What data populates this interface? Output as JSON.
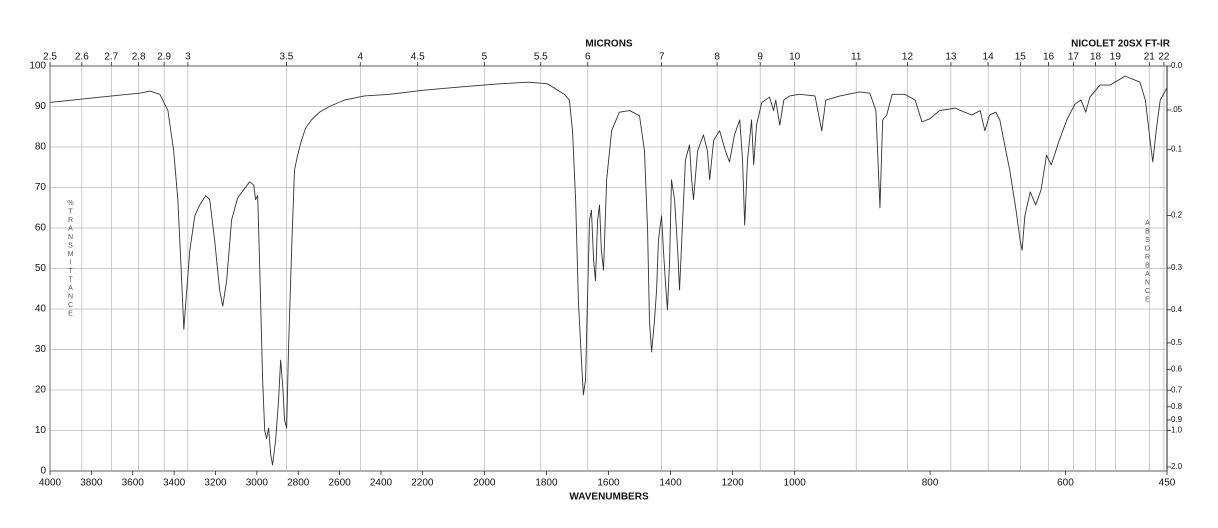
{
  "chart_data": {
    "type": "line",
    "title": "NICOLET 20SX FT-IR",
    "top_axis_label": "MICRONS",
    "x_label": "WAVENUMBERS",
    "y_label": "%TRANSMITTANCE",
    "y2_label": "ABSORBANCE",
    "xlim": [
      4000,
      450
    ],
    "xbreaks": [
      4000,
      2200,
      1000,
      450
    ],
    "xticks": [
      4000,
      3800,
      3600,
      3400,
      3200,
      3000,
      2800,
      2600,
      2400,
      2200,
      2000,
      1800,
      1600,
      1400,
      1200,
      1000,
      800,
      600,
      450
    ],
    "micron_ticks": [
      2.5,
      2.6,
      2.7,
      2.8,
      2.9,
      3,
      3.5,
      4,
      4.5,
      5,
      5.5,
      6,
      7,
      8,
      9,
      10,
      11,
      12,
      13,
      14,
      15,
      16,
      17,
      18,
      19,
      21,
      22
    ],
    "ylim": [
      0,
      100
    ],
    "yticks": [
      0,
      10,
      20,
      30,
      40,
      50,
      60,
      70,
      80,
      90,
      100
    ],
    "y2_scale": "absorbance",
    "y2ticks": [
      {
        "value": 0,
        "label": "0.0"
      },
      {
        "value": 0.05,
        "label": ".05"
      },
      0.1,
      0.2,
      0.3,
      0.4,
      0.5,
      0.6,
      0.7,
      0.8,
      0.9,
      {
        "value": 1,
        "label": "1.0"
      },
      {
        "value": 2,
        "label": "2.0"
      }
    ],
    "grid": true,
    "series": [
      {
        "name": "spectrum",
        "color": "#333333",
        "x": [
          4000,
          3759,
          3566,
          3517,
          3469,
          3430,
          3402,
          3382,
          3368,
          3353,
          3343,
          3324,
          3300,
          3276,
          3247,
          3228,
          3204,
          3180,
          3165,
          3146,
          3122,
          3093,
          3064,
          3035,
          3015,
          3006,
          2996,
          2987,
          2972,
          2962,
          2953,
          2943,
          2933,
          2924,
          2909,
          2895,
          2885,
          2875,
          2866,
          2856,
          2847,
          2832,
          2818,
          2803,
          2784,
          2764,
          2736,
          2697,
          2649,
          2576,
          2480,
          2359,
          2263,
          2200,
          2081,
          1952,
          1855,
          1797,
          1742,
          1726,
          1716,
          1706,
          1697,
          1687,
          1681,
          1674,
          1668,
          1661,
          1655,
          1648,
          1642,
          1635,
          1629,
          1623,
          1616,
          1606,
          1590,
          1565,
          1532,
          1500,
          1484,
          1474,
          1468,
          1461,
          1452,
          1445,
          1439,
          1435,
          1429,
          1423,
          1416,
          1410,
          1403,
          1397,
          1387,
          1377,
          1371,
          1361,
          1352,
          1339,
          1332,
          1326,
          1313,
          1294,
          1281,
          1274,
          1261,
          1242,
          1223,
          1210,
          1194,
          1177,
          1168,
          1161,
          1152,
          1139,
          1132,
          1123,
          1106,
          1081,
          1068,
          1061,
          1048,
          1035,
          1016,
          993,
          970,
          960,
          954,
          933,
          904,
          889,
          880,
          874,
          870,
          864,
          856,
          837,
          822,
          812,
          800,
          786,
          763,
          749,
          738,
          726,
          719,
          712,
          703,
          697,
          682,
          673,
          667,
          664,
          660,
          652,
          644,
          636,
          628,
          621,
          609,
          598,
          586,
          577,
          570,
          564,
          549,
          534,
          522,
          512,
          497,
          490,
          482,
          475,
          471,
          466,
          460,
          450
        ],
        "values": [
          91,
          92.3,
          93.3,
          93.8,
          93,
          89,
          79,
          67,
          52,
          35,
          42,
          54.5,
          63,
          65.7,
          68,
          67,
          57,
          44.7,
          40.7,
          47,
          62,
          67.4,
          69.4,
          71.4,
          70.6,
          67,
          68,
          52,
          22.5,
          10,
          8,
          10.6,
          4,
          1.5,
          7.7,
          17.5,
          27.4,
          21,
          12.6,
          10.6,
          30,
          54.5,
          74.3,
          78,
          81.7,
          84.7,
          86.7,
          88.6,
          90,
          91.6,
          92.6,
          93,
          93.6,
          94,
          94.8,
          95.6,
          96,
          95.6,
          93,
          91.6,
          84,
          67,
          42,
          27,
          18.8,
          22.5,
          42,
          62,
          64.4,
          52,
          47,
          62,
          65.7,
          54.5,
          49.6,
          71.9,
          84,
          88.6,
          89,
          87.7,
          79,
          59.5,
          37,
          29.4,
          37,
          44.7,
          57,
          59.5,
          63,
          54.5,
          46,
          39.8,
          52,
          71.9,
          67,
          54.5,
          44.7,
          62,
          76.8,
          80.5,
          71.9,
          67,
          79,
          83,
          79,
          71.9,
          81.7,
          84,
          79,
          76.3,
          83,
          86.7,
          76.8,
          60.7,
          76.8,
          86.7,
          75.6,
          85.4,
          91,
          92.3,
          89,
          91.6,
          85.4,
          91.6,
          92.6,
          93,
          92.6,
          84,
          91.6,
          92.6,
          93.6,
          93.3,
          89,
          65,
          86.7,
          87.9,
          93,
          93,
          91.6,
          86.2,
          87,
          89,
          89.6,
          88.6,
          87.9,
          89,
          84,
          87.9,
          88.6,
          86.7,
          74,
          64.4,
          57,
          54.5,
          63,
          68.9,
          65.7,
          69.4,
          78,
          75.6,
          81.7,
          86.7,
          90.6,
          91.6,
          88.6,
          92.3,
          95.3,
          95.3,
          96.5,
          97.5,
          96.5,
          96,
          91.6,
          81.7,
          76.3,
          84,
          91.6,
          94.6
        ]
      }
    ]
  }
}
